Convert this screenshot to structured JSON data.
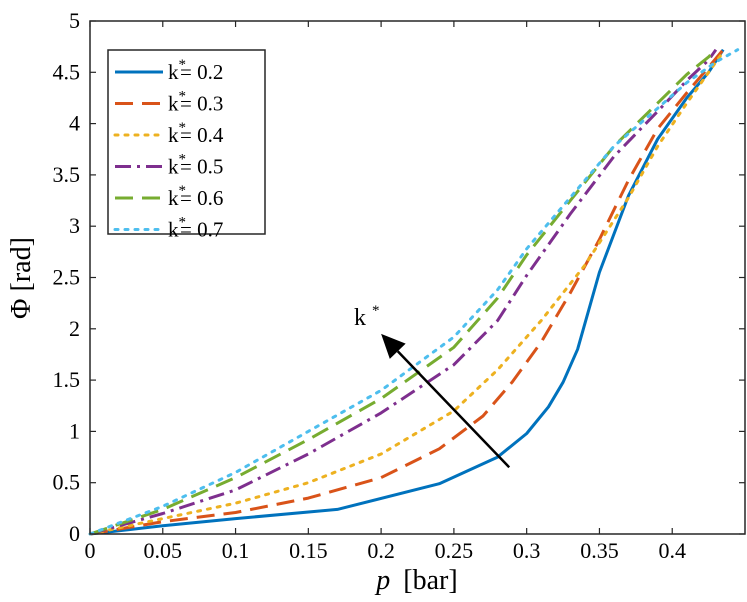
{
  "chart_data": {
    "type": "line",
    "xlabel_var": "p",
    "xlabel_unit": "[bar]",
    "ylabel": "Φ [rad]",
    "xlim": [
      0,
      0.45
    ],
    "ylim": [
      0,
      5
    ],
    "xticks": [
      "0",
      "0.05",
      "0.1",
      "0.15",
      "0.2",
      "0.25",
      "0.3",
      "0.35",
      "0.4"
    ],
    "yticks": [
      "0",
      "0.5",
      "1",
      "1.5",
      "2",
      "2.5",
      "3",
      "3.5",
      "4",
      "4.5",
      "5"
    ],
    "legend_position": "top-left",
    "annotation": {
      "label": "k",
      "superscript": "*",
      "arrow_from": [
        0.288,
        0.65
      ],
      "arrow_to": [
        0.2,
        1.95
      ]
    },
    "series": [
      {
        "name_base": "k",
        "name_rest": "= 0.2",
        "color": "#0072BD",
        "style": "solid",
        "x": [
          0,
          0.05,
          0.1,
          0.17,
          0.24,
          0.28,
          0.3,
          0.315,
          0.325,
          0.335,
          0.35,
          0.37,
          0.39,
          0.41,
          0.425,
          0.435
        ],
        "y": [
          0,
          0.08,
          0.15,
          0.24,
          0.49,
          0.75,
          0.98,
          1.24,
          1.48,
          1.8,
          2.55,
          3.3,
          3.85,
          4.25,
          4.5,
          4.72
        ]
      },
      {
        "name_base": "k",
        "name_rest": "= 0.3",
        "color": "#D95319",
        "style": "dash",
        "x": [
          0,
          0.05,
          0.1,
          0.15,
          0.2,
          0.24,
          0.27,
          0.29,
          0.31,
          0.33,
          0.35,
          0.37,
          0.39,
          0.41,
          0.425,
          0.435
        ],
        "y": [
          0,
          0.12,
          0.21,
          0.35,
          0.55,
          0.83,
          1.15,
          1.48,
          1.87,
          2.35,
          2.87,
          3.45,
          3.95,
          4.3,
          4.55,
          4.72
        ]
      },
      {
        "name_base": "k",
        "name_rest": "= 0.4",
        "color": "#EDB120",
        "style": "dot",
        "x": [
          0,
          0.05,
          0.1,
          0.15,
          0.2,
          0.25,
          0.28,
          0.31,
          0.34,
          0.37,
          0.39,
          0.41,
          0.425,
          0.435
        ],
        "y": [
          0,
          0.15,
          0.3,
          0.5,
          0.78,
          1.2,
          1.6,
          2.08,
          2.62,
          3.28,
          3.78,
          4.2,
          4.5,
          4.7
        ]
      },
      {
        "name_base": "k",
        "name_rest": "= 0.5",
        "color": "#7E2F8E",
        "style": "dashdot",
        "x": [
          0,
          0.05,
          0.1,
          0.15,
          0.2,
          0.25,
          0.28,
          0.3,
          0.33,
          0.36,
          0.39,
          0.41,
          0.425,
          0.43
        ],
        "y": [
          0,
          0.2,
          0.43,
          0.78,
          1.18,
          1.65,
          2.08,
          2.52,
          3.12,
          3.68,
          4.12,
          4.42,
          4.62,
          4.72
        ]
      },
      {
        "name_base": "k",
        "name_rest": "= 0.6",
        "color": "#77AC30",
        "style": "dash",
        "x": [
          0,
          0.05,
          0.1,
          0.15,
          0.2,
          0.25,
          0.28,
          0.3,
          0.33,
          0.36,
          0.39,
          0.41,
          0.425,
          0.43
        ],
        "y": [
          0,
          0.24,
          0.55,
          0.92,
          1.32,
          1.82,
          2.3,
          2.72,
          3.25,
          3.78,
          4.2,
          4.48,
          4.65,
          4.72
        ]
      },
      {
        "name_base": "k",
        "name_rest": "= 0.7",
        "color": "#4DBEEE",
        "style": "dot",
        "x": [
          0,
          0.05,
          0.1,
          0.15,
          0.2,
          0.25,
          0.28,
          0.3,
          0.33,
          0.36,
          0.39,
          0.41,
          0.43,
          0.445
        ],
        "y": [
          0,
          0.27,
          0.6,
          1.0,
          1.4,
          1.92,
          2.38,
          2.78,
          3.28,
          3.78,
          4.15,
          4.4,
          4.6,
          4.72
        ]
      }
    ]
  }
}
